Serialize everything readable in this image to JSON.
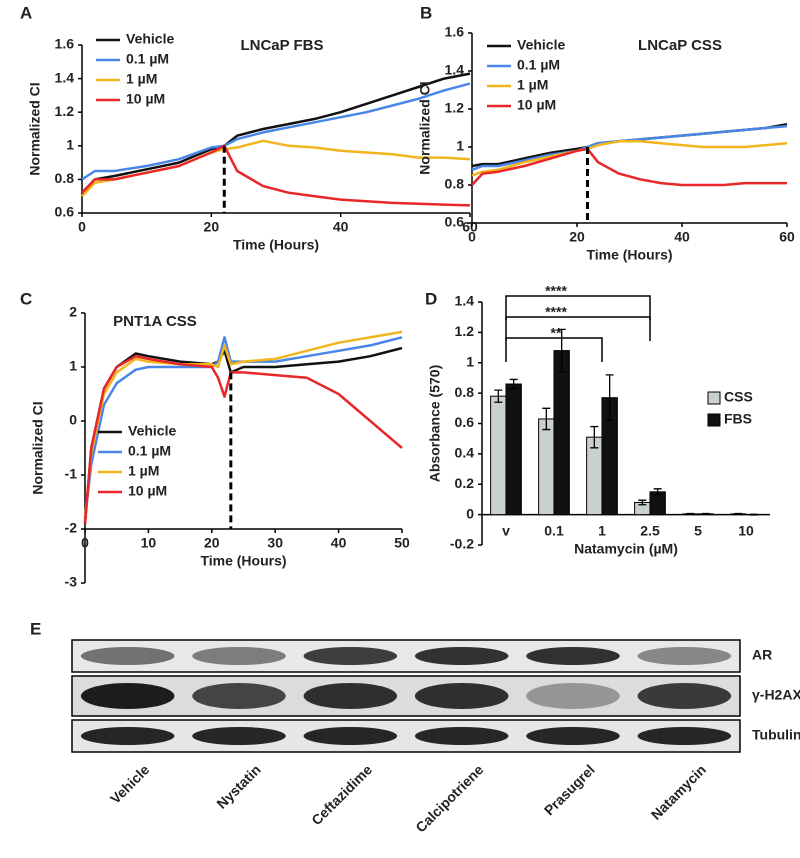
{
  "chart_data": [
    {
      "type": "line",
      "label": "A",
      "title": "LNCaP FBS",
      "xlabel": "Time (Hours)",
      "ylabel": "Normalized CI",
      "x": [
        0,
        2,
        5,
        10,
        15,
        20,
        22,
        24,
        28,
        32,
        36,
        40,
        44,
        48,
        52,
        56,
        60
      ],
      "series": [
        {
          "name": "Vehicle",
          "color": "#111111",
          "values": [
            0.72,
            0.8,
            0.82,
            0.86,
            0.9,
            0.98,
            1.0,
            1.06,
            1.1,
            1.13,
            1.16,
            1.2,
            1.25,
            1.3,
            1.35,
            1.4,
            1.43
          ]
        },
        {
          "name": "0.1 µM",
          "color": "#4a86e8",
          "values": [
            0.8,
            0.85,
            0.85,
            0.88,
            0.92,
            0.99,
            1.0,
            1.04,
            1.08,
            1.11,
            1.14,
            1.17,
            1.2,
            1.24,
            1.28,
            1.33,
            1.37
          ]
        },
        {
          "name": "1 µM",
          "color": "#f2b51d",
          "values": [
            0.7,
            0.78,
            0.8,
            0.84,
            0.88,
            0.96,
            0.98,
            0.99,
            1.03,
            1.0,
            0.99,
            0.97,
            0.96,
            0.95,
            0.93,
            0.93,
            0.92
          ]
        },
        {
          "name": "10 µM",
          "color": "#e8272a",
          "values": [
            0.72,
            0.8,
            0.8,
            0.84,
            0.88,
            0.96,
            1.0,
            0.85,
            0.76,
            0.72,
            0.7,
            0.68,
            0.67,
            0.66,
            0.655,
            0.65,
            0.645
          ]
        }
      ],
      "xlim": [
        0,
        60
      ],
      "xticks": [
        0,
        20,
        40,
        60
      ],
      "ylim": [
        0.6,
        1.6
      ],
      "yticks": [
        0.6,
        0.8,
        1,
        1.2,
        1.4,
        1.6
      ],
      "vlines": [
        22
      ],
      "legend": "upper left"
    },
    {
      "type": "line",
      "label": "B",
      "title": "LNCaP CSS",
      "xlabel": "Time (Hours)",
      "ylabel": "Normalized CI",
      "x": [
        0,
        2,
        5,
        10,
        15,
        20,
        22,
        24,
        28,
        32,
        36,
        40,
        44,
        48,
        52,
        56,
        60
      ],
      "series": [
        {
          "name": "Vehicle",
          "color": "#111111",
          "values": [
            0.9,
            0.91,
            0.91,
            0.94,
            0.97,
            0.99,
            1.0,
            1.02,
            1.03,
            1.04,
            1.05,
            1.06,
            1.07,
            1.08,
            1.09,
            1.1,
            1.12
          ]
        },
        {
          "name": "0.1 µM",
          "color": "#4a86e8",
          "values": [
            0.88,
            0.9,
            0.9,
            0.93,
            0.96,
            0.98,
            1.0,
            1.02,
            1.03,
            1.04,
            1.05,
            1.06,
            1.07,
            1.08,
            1.09,
            1.1,
            1.11
          ]
        },
        {
          "name": "1 µM",
          "color": "#f2b51d",
          "values": [
            0.85,
            0.87,
            0.88,
            0.92,
            0.95,
            0.98,
            0.99,
            1.01,
            1.03,
            1.03,
            1.02,
            1.01,
            1.0,
            1.0,
            1.0,
            1.01,
            1.02
          ]
        },
        {
          "name": "10 µM",
          "color": "#e8272a",
          "values": [
            0.8,
            0.86,
            0.87,
            0.9,
            0.94,
            0.98,
            0.99,
            0.92,
            0.86,
            0.83,
            0.81,
            0.8,
            0.8,
            0.8,
            0.81,
            0.81,
            0.81
          ]
        }
      ],
      "xlim": [
        0,
        60
      ],
      "xticks": [
        0,
        20,
        40,
        60
      ],
      "ylim": [
        0.6,
        1.6
      ],
      "yticks": [
        0.6,
        0.8,
        1,
        1.2,
        1.4,
        1.6
      ],
      "vlines": [
        22
      ],
      "legend": "upper left"
    },
    {
      "type": "line",
      "label": "C",
      "title": "PNT1A CSS",
      "xlabel": "Time (Hours)",
      "ylabel": "Normalized CI",
      "x": [
        0,
        1,
        3,
        5,
        8,
        10,
        15,
        20,
        21,
        22,
        23,
        25,
        30,
        35,
        40,
        45,
        50
      ],
      "series": [
        {
          "name": "Vehicle",
          "color": "#111111",
          "values": [
            -1.9,
            -0.5,
            0.6,
            1.0,
            1.25,
            1.2,
            1.1,
            1.05,
            1.1,
            1.3,
            0.9,
            1.0,
            1.0,
            1.05,
            1.1,
            1.2,
            1.35
          ]
        },
        {
          "name": "0.1 µM",
          "color": "#4a86e8",
          "values": [
            -1.8,
            -0.8,
            0.3,
            0.7,
            0.95,
            1.0,
            1.0,
            1.0,
            1.1,
            1.55,
            1.1,
            1.1,
            1.1,
            1.2,
            1.3,
            1.4,
            1.55
          ]
        },
        {
          "name": "1 µM",
          "color": "#f2b51d",
          "values": [
            -1.8,
            -0.6,
            0.5,
            0.9,
            1.15,
            1.1,
            1.05,
            1.05,
            1.0,
            1.4,
            1.05,
            1.1,
            1.15,
            1.3,
            1.45,
            1.55,
            1.65
          ]
        },
        {
          "name": "10 µM",
          "color": "#e8272a",
          "values": [
            -1.9,
            -0.5,
            0.6,
            1.0,
            1.2,
            1.15,
            1.05,
            1.0,
            0.8,
            0.45,
            0.9,
            0.9,
            0.85,
            0.8,
            0.5,
            0.0,
            -0.5
          ]
        }
      ],
      "xlim": [
        0,
        50
      ],
      "xticks": [
        0,
        10,
        20,
        30,
        40,
        50
      ],
      "ylim": [
        -3,
        2
      ],
      "yticks": [
        -3,
        -2,
        -1,
        0,
        1,
        2
      ],
      "xaxis_crossing": -2,
      "vlines": [
        23
      ],
      "legend": "lower left"
    },
    {
      "type": "bar",
      "label": "D",
      "xlabel": "Natamycin (µM)",
      "ylabel": "Absorbance  (570)",
      "categories": [
        "v",
        "0.1",
        "1",
        "2.5",
        "5",
        "10"
      ],
      "series": [
        {
          "name": "CSS",
          "color": "#c9d1cd",
          "values": [
            0.78,
            0.63,
            0.51,
            0.08,
            0.005,
            0.005
          ],
          "errors": [
            0.04,
            0.07,
            0.07,
            0.015,
            0.002,
            0.002
          ]
        },
        {
          "name": "FBS",
          "color": "#111111",
          "values": [
            0.86,
            1.08,
            0.77,
            0.15,
            0.005,
            0.0
          ],
          "errors": [
            0.03,
            0.14,
            0.15,
            0.02,
            0.002,
            0.002
          ]
        }
      ],
      "ylim": [
        -0.2,
        1.4
      ],
      "yticks": [
        -0.2,
        0,
        0.2,
        0.4,
        0.6,
        0.8,
        1,
        1.2,
        1.4
      ],
      "significance": [
        {
          "label": "****",
          "from": "v",
          "to": "2.5"
        },
        {
          "label": "****",
          "from": "v",
          "to": "2.5"
        },
        {
          "label": "**",
          "from": "v",
          "to": "1"
        }
      ],
      "legend": "right"
    }
  ],
  "blot": {
    "label": "E",
    "rows": [
      "AR",
      "γ-H2AX",
      "Tubulin"
    ],
    "lanes": [
      "Vehicle",
      "Nystatin",
      "Ceftazidime",
      "Calcipotriene",
      "Prasugrel",
      "Natamycin"
    ]
  }
}
